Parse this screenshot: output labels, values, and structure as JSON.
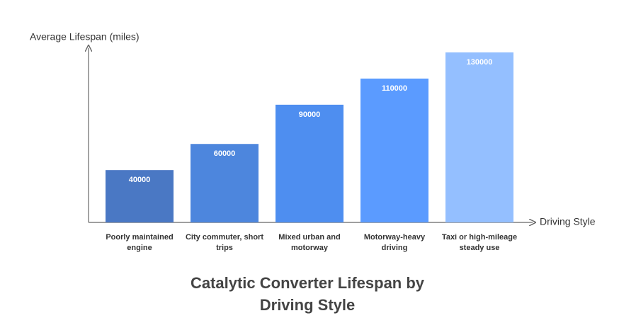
{
  "chart_data": {
    "type": "bar",
    "title": "Catalytic Converter Lifespan by Driving Style",
    "x_label": "Driving Style",
    "y_label": "Average Lifespan (miles)",
    "categories": [
      "Poorly maintained engine",
      "City commuter, short trips",
      "Mixed urban and motorway",
      "Motorway-heavy driving",
      "Taxi or high-mileage steady use"
    ],
    "values": [
      40000,
      60000,
      90000,
      110000,
      130000
    ],
    "colors": [
      "#4a78c4",
      "#4d86dd",
      "#4e8ef0",
      "#5b9bff",
      "#94bfff"
    ],
    "ylim": [
      0,
      130000
    ],
    "grid": false
  }
}
